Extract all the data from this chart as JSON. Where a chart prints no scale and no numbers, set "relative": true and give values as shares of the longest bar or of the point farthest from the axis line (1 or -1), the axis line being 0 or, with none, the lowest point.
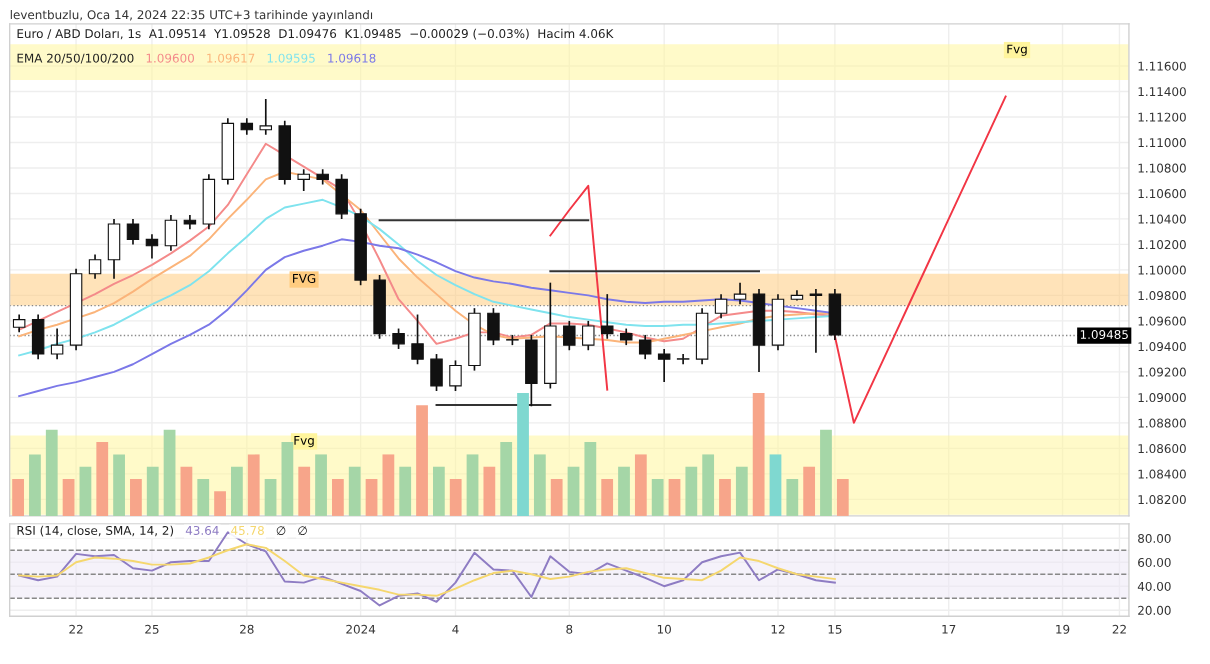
{
  "chart_data": [
    {
      "type": "candlestick",
      "title": "leventbuzlu, Oca 14, 2024 22:35 UTC+3 tarihinde yayınlandı",
      "subtitle": "Euro / ABD Doları, 1s  A1.09514  Y1.09528  D1.09476  K1.09485  −0.00029 (−0.03%)  Hacim 4.06K",
      "categories": [
        null,
        null,
        null,
        "22",
        null,
        null,
        null,
        "25",
        null,
        null,
        null,
        null,
        "28",
        null,
        null,
        null,
        null,
        null,
        "2024",
        null,
        null,
        null,
        null,
        "4",
        null,
        null,
        null,
        null,
        null,
        "8",
        null,
        null,
        null,
        null,
        "10",
        null,
        null,
        null,
        null,
        null,
        "12",
        null,
        null,
        "15",
        null,
        null,
        null,
        null,
        null,
        "17",
        null,
        null,
        null,
        null,
        null,
        "19",
        null,
        null,
        "22"
      ],
      "ohlc": [
        [
          1.0955,
          1.0965,
          1.0951,
          1.0961
        ],
        [
          1.0961,
          1.0965,
          1.093,
          1.0934
        ],
        [
          1.0934,
          1.0954,
          1.093,
          1.0941
        ],
        [
          1.0941,
          1.1001,
          1.0937,
          1.0997
        ],
        [
          1.0997,
          1.1012,
          1.0993,
          1.1008
        ],
        [
          1.1008,
          1.104,
          1.0993,
          1.1036
        ],
        [
          1.1036,
          1.104,
          1.102,
          1.1024
        ],
        [
          1.1024,
          1.1028,
          1.1009,
          1.1019
        ],
        [
          1.1019,
          1.1043,
          1.1015,
          1.1039
        ],
        [
          1.1039,
          1.1043,
          1.1032,
          1.1036
        ],
        [
          1.1036,
          1.1075,
          1.1032,
          1.1071
        ],
        [
          1.1071,
          1.1119,
          1.1067,
          1.1115
        ],
        [
          1.1115,
          1.1119,
          1.1106,
          1.111
        ],
        [
          1.111,
          1.1134,
          1.1106,
          1.1113
        ],
        [
          1.1113,
          1.1117,
          1.1067,
          1.1071
        ],
        [
          1.1071,
          1.1079,
          1.1062,
          1.1075
        ],
        [
          1.1075,
          1.1079,
          1.1067,
          1.1071
        ],
        [
          1.1071,
          1.1075,
          1.104,
          1.1044
        ],
        [
          1.1044,
          1.1048,
          1.0988,
          1.0992
        ],
        [
          1.0992,
          1.0996,
          1.0946,
          1.095
        ],
        [
          1.095,
          1.0954,
          1.0938,
          1.0942
        ],
        [
          1.0942,
          1.0965,
          1.0926,
          1.093
        ],
        [
          1.093,
          1.0934,
          1.0905,
          1.0909
        ],
        [
          1.0909,
          1.0929,
          1.0905,
          1.0925
        ],
        [
          1.0925,
          1.097,
          1.0921,
          1.0966
        ],
        [
          1.0966,
          1.097,
          1.0941,
          1.0945
        ],
        [
          1.0945,
          1.0949,
          1.0941,
          1.0945
        ],
        [
          1.0945,
          1.0949,
          1.0893,
          1.0911
        ],
        [
          1.0911,
          1.099,
          1.0907,
          1.0956
        ],
        [
          1.0956,
          1.096,
          1.0937,
          1.0941
        ],
        [
          1.0941,
          1.096,
          1.0937,
          1.0956
        ],
        [
          1.0956,
          1.0981,
          1.0946,
          1.095
        ],
        [
          1.095,
          1.0954,
          1.0941,
          1.0945
        ],
        [
          1.0945,
          1.0949,
          1.093,
          1.0934
        ],
        [
          1.0934,
          1.0938,
          1.0912,
          1.093
        ],
        [
          1.093,
          1.0934,
          1.0926,
          1.093
        ],
        [
          1.093,
          1.097,
          1.0926,
          1.0966
        ],
        [
          1.0966,
          1.0981,
          1.0962,
          1.0977
        ],
        [
          1.0977,
          1.099,
          1.0973,
          1.0981
        ],
        [
          1.0981,
          1.0985,
          1.092,
          1.0941
        ],
        [
          1.0941,
          1.0981,
          1.0937,
          1.0977
        ],
        [
          1.0977,
          1.0984,
          1.0976,
          1.098
        ],
        [
          1.098,
          1.0985,
          1.0935,
          1.0981
        ],
        [
          1.0981,
          1.0985,
          1.0945,
          1.0949
        ],
        null,
        null,
        null,
        null,
        null,
        null,
        null,
        null,
        null,
        null,
        null,
        null,
        null,
        null,
        null
      ],
      "series": [
        {
          "type": "line",
          "color": "#f48a8a",
          "values": [
            1.0953,
            1.096,
            1.0967,
            1.0974,
            1.0981,
            1.0989,
            1.0996,
            1.1004,
            1.1013,
            1.1023,
            1.1034,
            1.1051,
            1.1075,
            1.1099,
            1.109,
            1.1081,
            1.1072,
            1.1063,
            1.1037,
            1.1008,
            1.0977,
            1.096,
            1.0942,
            1.0946,
            1.0951,
            1.0951,
            1.0947,
            1.0949,
            1.0958,
            1.0958,
            1.0957,
            1.0954,
            1.0951,
            1.0947,
            1.0944,
            1.0946,
            1.0955,
            1.0964,
            1.0966,
            1.0968,
            1.0968,
            1.0967,
            1.0965,
            1.0964,
            null,
            null,
            null,
            null,
            null,
            null,
            null,
            null,
            null,
            null,
            null,
            null,
            null,
            null,
            null
          ]
        },
        {
          "type": "line",
          "color": "#fbb47a",
          "values": [
            1.0948,
            1.0953,
            1.0957,
            1.0962,
            1.0967,
            1.0974,
            1.0983,
            1.0993,
            1.1002,
            1.1011,
            1.1024,
            1.104,
            1.1055,
            1.1071,
            1.1077,
            1.1074,
            1.1071,
            1.1059,
            1.1047,
            1.1028,
            1.1009,
            1.0994,
            1.0981,
            1.0968,
            1.0957,
            1.0949,
            1.0946,
            1.0947,
            1.0948,
            1.0947,
            1.0946,
            1.0945,
            1.0943,
            1.0943,
            1.0946,
            1.0949,
            1.0952,
            1.0955,
            1.0958,
            1.0962,
            1.0964,
            1.0965,
            1.0966,
            1.0966,
            null,
            null,
            null,
            null,
            null,
            null,
            null,
            null,
            null,
            null,
            null,
            null,
            null,
            null,
            null
          ]
        },
        {
          "type": "line",
          "color": "#7fe3ee",
          "values": [
            1.0933,
            1.0937,
            1.0942,
            1.0946,
            1.0951,
            1.0957,
            1.0965,
            1.0973,
            1.098,
            1.0988,
            1.0999,
            1.1013,
            1.1026,
            1.104,
            1.1049,
            1.1052,
            1.1055,
            1.1049,
            1.1042,
            1.1032,
            1.102,
            1.1007,
            1.0996,
            1.0988,
            1.0981,
            1.0975,
            1.0972,
            1.0969,
            1.0966,
            1.0963,
            1.0961,
            1.0959,
            1.0957,
            1.0956,
            1.0956,
            1.0957,
            1.0957,
            1.0958,
            1.0959,
            1.096,
            1.0961,
            1.0962,
            1.0963,
            1.0964,
            null,
            null,
            null,
            null,
            null,
            null,
            null,
            null,
            null,
            null,
            null,
            null,
            null,
            null,
            null
          ]
        },
        {
          "type": "line",
          "color": "#7b78e8",
          "values": [
            1.0901,
            1.0905,
            1.0909,
            1.0912,
            1.0916,
            1.092,
            1.0926,
            1.0934,
            1.0942,
            1.0949,
            1.0957,
            1.0969,
            1.0984,
            1.1,
            1.101,
            1.1015,
            1.1019,
            1.1024,
            1.1022,
            1.1019,
            1.1017,
            1.1012,
            1.1006,
            1.0999,
            1.0994,
            1.0991,
            1.0989,
            1.0986,
            1.0984,
            1.0982,
            1.098,
            1.0977,
            1.0975,
            1.0974,
            1.0975,
            1.0975,
            1.0976,
            1.0977,
            1.0976,
            1.0974,
            1.0972,
            1.097,
            1.0968,
            1.0966,
            null,
            null,
            null,
            null,
            null,
            null,
            null,
            null,
            null,
            null,
            null,
            null,
            null,
            null,
            null
          ]
        },
        {
          "type": "line",
          "color": "#f23645",
          "values": [
            null,
            null,
            null,
            null,
            null,
            null,
            null,
            null,
            null,
            null,
            null,
            null,
            null,
            null,
            null,
            null,
            null,
            null,
            null,
            null,
            null,
            null,
            null,
            null,
            null,
            null,
            null,
            null,
            1.1027,
            1.1047,
            1.1066,
            1.0906,
            null,
            null,
            null,
            null,
            null,
            null,
            null,
            null,
            null,
            null,
            null,
            null,
            null,
            null,
            null,
            null,
            null,
            null,
            null,
            null,
            null,
            null,
            null,
            null,
            null,
            null,
            null
          ]
        },
        {
          "type": "line",
          "color": "#f23645",
          "values": [
            null,
            null,
            null,
            null,
            null,
            null,
            null,
            null,
            null,
            null,
            null,
            null,
            null,
            null,
            null,
            null,
            null,
            null,
            null,
            null,
            null,
            null,
            null,
            null,
            null,
            null,
            null,
            null,
            null,
            null,
            null,
            null,
            null,
            null,
            null,
            null,
            null,
            null,
            null,
            null,
            null,
            null,
            null,
            1.0948,
            1.088,
            1.0912,
            1.0944,
            1.0976,
            1.1008,
            1.104,
            1.1072,
            1.1104,
            1.1136,
            null,
            null,
            null,
            null,
            null,
            null
          ]
        },
        {
          "type": "line",
          "color": "#333333",
          "values": [
            null,
            null,
            null,
            null,
            null,
            null,
            null,
            null,
            null,
            null,
            null,
            null,
            null,
            null,
            null,
            null,
            null,
            null,
            null,
            1.1039,
            1.1039,
            1.1039,
            1.1039,
            1.1039,
            1.1039,
            1.1039,
            1.1039,
            1.1039,
            1.1039,
            1.1039,
            1.1039,
            null,
            null,
            null,
            null,
            null,
            null,
            null,
            null,
            null,
            null,
            null,
            null,
            null,
            null,
            null,
            null,
            null,
            null,
            null,
            null,
            null,
            null,
            null,
            null,
            null,
            null,
            null,
            null
          ]
        },
        {
          "type": "line",
          "color": "#333333",
          "values": [
            null,
            null,
            null,
            null,
            null,
            null,
            null,
            null,
            null,
            null,
            null,
            null,
            null,
            null,
            null,
            null,
            null,
            null,
            null,
            null,
            null,
            null,
            null,
            null,
            null,
            null,
            null,
            null,
            1.0999,
            1.0999,
            1.0999,
            1.0999,
            1.0999,
            1.0999,
            1.0999,
            1.0999,
            1.0999,
            1.0999,
            1.0999,
            1.0999,
            null,
            null,
            null,
            null,
            null,
            null,
            null,
            null,
            null,
            null,
            null,
            null,
            null,
            null,
            null,
            null,
            null,
            null,
            null
          ]
        },
        {
          "type": "line",
          "color": "#333333",
          "values": [
            null,
            null,
            null,
            null,
            null,
            null,
            null,
            null,
            null,
            null,
            null,
            null,
            null,
            null,
            null,
            null,
            null,
            null,
            null,
            null,
            null,
            null,
            1.0894,
            1.0894,
            1.0894,
            1.0894,
            1.0894,
            1.0894,
            1.0894,
            null,
            null,
            null,
            null,
            null,
            null,
            null,
            null,
            null,
            null,
            null,
            null,
            null,
            null,
            null,
            null,
            null,
            null,
            null,
            null,
            null,
            null,
            null,
            null,
            null,
            null,
            null,
            null,
            null,
            null
          ]
        }
      ],
      "bands": [
        {
          "axis": "y",
          "from": 1.1149,
          "to": 1.1177,
          "label": "Fvg",
          "color": "#fff59d"
        },
        {
          "axis": "y",
          "from": 1.0972,
          "to": 1.0997,
          "label": "FVG",
          "color": "#ffcc80"
        },
        {
          "axis": "y",
          "from": 1.0808,
          "to": 1.087,
          "label": "Fvg",
          "color": "#fff59d"
        }
      ],
      "ref_lines": [
        {
          "axis": "y",
          "value": 1.0972,
          "line_style": "dotted"
        },
        {
          "axis": "y",
          "value": 1.09485,
          "label": "1.09485",
          "line_style": "dotted"
        }
      ],
      "annotations": [
        "EMA 20/50/100/200",
        "1.09600",
        "1.09617",
        "1.09595",
        "1.09618"
      ],
      "ylim": [
        1.0807,
        1.1193
      ],
      "yticks": [
        {
          "value": 1.082,
          "label": "1.08200"
        },
        {
          "value": 1.084,
          "label": "1.08400"
        },
        {
          "value": 1.086,
          "label": "1.08600"
        },
        {
          "value": 1.088,
          "label": "1.08800"
        },
        {
          "value": 1.09,
          "label": "1.09000"
        },
        {
          "value": 1.092,
          "label": "1.09200"
        },
        {
          "value": 1.094,
          "label": "1.09400"
        },
        {
          "value": 1.096,
          "label": "1.09600"
        },
        {
          "value": 1.098,
          "label": "1.09800"
        },
        {
          "value": 1.1,
          "label": "1.10000"
        },
        {
          "value": 1.102,
          "label": "1.10200"
        },
        {
          "value": 1.104,
          "label": "1.10400"
        },
        {
          "value": 1.106,
          "label": "1.10600"
        },
        {
          "value": 1.108,
          "label": "1.10800"
        },
        {
          "value": 1.11,
          "label": "1.11000"
        },
        {
          "value": 1.112,
          "label": "1.11200"
        },
        {
          "value": 1.114,
          "label": "1.11400"
        },
        {
          "value": 1.116,
          "label": "1.11600"
        }
      ],
      "tick_labels": "y",
      "grid": true
    },
    {
      "type": "bar",
      "relative": true,
      "tick_labels": false,
      "categories": [
        null,
        null,
        null,
        null,
        null,
        null,
        null,
        null,
        null,
        null,
        null,
        null,
        null,
        null,
        null,
        null,
        null,
        null,
        null,
        null,
        null,
        null,
        null,
        null,
        null,
        null,
        null,
        null,
        null,
        null,
        null,
        null,
        null,
        null,
        null,
        null,
        null,
        null,
        null,
        null,
        null,
        null,
        null,
        null,
        null,
        null,
        null,
        null,
        null,
        null
      ],
      "values": [
        0.3,
        0.5,
        0.7,
        0.3,
        0.4,
        0.6,
        0.5,
        0.3,
        0.4,
        0.7,
        0.4,
        0.3,
        0.2,
        0.4,
        0.5,
        0.3,
        0.6,
        0.4,
        0.5,
        0.3,
        0.4,
        0.3,
        0.5,
        0.4,
        0.9,
        0.4,
        0.3,
        0.5,
        0.4,
        0.6,
        1.0,
        0.5,
        0.3,
        0.4,
        0.6,
        0.3,
        0.4,
        0.5,
        0.3,
        0.3,
        0.4,
        0.5,
        0.3,
        0.4,
        1.0,
        0.5,
        0.3,
        0.4,
        0.7,
        0.3
      ],
      "colors": [
        "#f7a58a",
        "#a5d6a7",
        "#a5d6a7",
        "#f7a58a",
        "#a5d6a7",
        "#f7a58a",
        "#a5d6a7",
        "#f7a58a",
        "#a5d6a7",
        "#a5d6a7",
        "#f7a58a",
        "#a5d6a7",
        "#f7a58a",
        "#a5d6a7",
        "#f7a58a",
        "#a5d6a7",
        "#a5d6a7",
        "#f7a58a",
        "#a5d6a7",
        "#f7a58a",
        "#a5d6a7",
        "#f7a58a",
        "#f7a58a",
        "#a5d6a7",
        "#f7a58a",
        "#a5d6a7",
        "#f7a58a",
        "#a5d6a7",
        "#f7a58a",
        "#a5d6a7",
        "#7fd8d0",
        "#a5d6a7",
        "#f7a58a",
        "#a5d6a7",
        "#a5d6a7",
        "#f7a58a",
        "#a5d6a7",
        "#f7a58a",
        "#a5d6a7",
        "#f7a58a",
        "#a5d6a7",
        "#a5d6a7",
        "#f7a58a",
        "#a5d6a7",
        "#f7a58a",
        "#7fd8d0",
        "#a5d6a7",
        "#f7a58a",
        "#a5d6a7",
        "#f7a58a"
      ]
    },
    {
      "type": "line",
      "categories": [
        null,
        null,
        null,
        "22",
        null,
        null,
        null,
        "25",
        null,
        null,
        null,
        null,
        "28",
        null,
        null,
        null,
        null,
        null,
        "2024",
        null,
        null,
        null,
        null,
        "4",
        null,
        null,
        null,
        null,
        null,
        "8",
        null,
        null,
        null,
        null,
        "10",
        null,
        null,
        null,
        null,
        null,
        "12",
        null,
        null,
        "15",
        null,
        null,
        null,
        null,
        null,
        "17",
        null,
        null,
        null,
        null,
        null,
        "19",
        null,
        null,
        "22"
      ],
      "series": [
        {
          "color": "#8e7cc3",
          "values": [
            49,
            45,
            48,
            67,
            65,
            66,
            55,
            53,
            60,
            61,
            61,
            85,
            75,
            69,
            44,
            43,
            48,
            42,
            36,
            24,
            32,
            34,
            27,
            43,
            68,
            54,
            53,
            31,
            65,
            52,
            50,
            59,
            53,
            47,
            40,
            45,
            60,
            65,
            68,
            45,
            54,
            50,
            45,
            43,
            null,
            null,
            null,
            null,
            null,
            null,
            null,
            null,
            null,
            null,
            null,
            null,
            null,
            null,
            null
          ]
        },
        {
          "color": "#f5d76e",
          "values": [
            49,
            48,
            49,
            60,
            64,
            63,
            61,
            58,
            58,
            59,
            64,
            70,
            75,
            72,
            61,
            49,
            46,
            43,
            40,
            37,
            33,
            33,
            32,
            38,
            45,
            51,
            53,
            50,
            46,
            48,
            52,
            54,
            55,
            51,
            47,
            46,
            45,
            53,
            64,
            61,
            55,
            50,
            48,
            46,
            null,
            null,
            null,
            null,
            null,
            null,
            null,
            null,
            null,
            null,
            null,
            null,
            null,
            null,
            null
          ]
        }
      ],
      "bands": [
        {
          "axis": "y",
          "from": 30,
          "to": 70,
          "color": "#ede7f6"
        }
      ],
      "ref_lines": [
        {
          "axis": "y",
          "value": 70,
          "line_style": "dashed"
        },
        {
          "axis": "y",
          "value": 50,
          "line_style": "dashed"
        },
        {
          "axis": "y",
          "value": 30,
          "line_style": "dashed"
        }
      ],
      "annotations": [
        "RSI (14, close, SMA, 14, 2)",
        "43.64",
        "45.78",
        "∅",
        "∅"
      ],
      "ylim": [
        15,
        92
      ],
      "yticks": [
        {
          "value": 20,
          "label": "20.00"
        },
        {
          "value": 40,
          "label": "40.00"
        },
        {
          "value": 60,
          "label": "60.00"
        },
        {
          "value": 80,
          "label": "80.00"
        }
      ],
      "grid": true
    }
  ]
}
